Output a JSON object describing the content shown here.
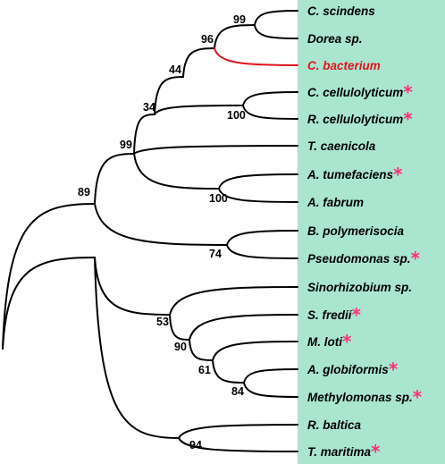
{
  "colors": {
    "panel": "#a9e5cf",
    "branch": "#000000",
    "highlight": "#e0141e",
    "star": "#ff2d7a"
  },
  "tree": {
    "taxa": [
      {
        "name": "C. scindens",
        "highlight": false,
        "star": false
      },
      {
        "name": "Dorea sp.",
        "highlight": false,
        "star": false
      },
      {
        "name": "C. bacterium",
        "highlight": true,
        "star": false
      },
      {
        "name": "C. cellulolyticum",
        "highlight": false,
        "star": true
      },
      {
        "name": "R. cellulolyticum",
        "highlight": false,
        "star": true
      },
      {
        "name": "T. caenicola",
        "highlight": false,
        "star": false
      },
      {
        "name": "A. tumefaciens",
        "highlight": false,
        "star": true
      },
      {
        "name": "A. fabrum",
        "highlight": false,
        "star": false
      },
      {
        "name": "B. polymerisocia",
        "highlight": false,
        "star": false
      },
      {
        "name": "Pseudomonas sp.",
        "highlight": false,
        "star": true
      },
      {
        "name": "Sinorhizobium sp.",
        "highlight": false,
        "star": false
      },
      {
        "name": "S. fredii",
        "highlight": false,
        "star": true
      },
      {
        "name": "M. loti",
        "highlight": false,
        "star": true
      },
      {
        "name": "A. globiformis",
        "highlight": false,
        "star": true
      },
      {
        "name": "Methylomonas sp.",
        "highlight": false,
        "star": true
      },
      {
        "name": "R. baltica",
        "highlight": false,
        "star": false
      },
      {
        "name": "T. maritima",
        "highlight": false,
        "star": true
      }
    ],
    "star_symbol": "*",
    "support_values": [
      "99",
      "96",
      "44",
      "100",
      "34",
      "99",
      "100",
      "89",
      "74",
      "53",
      "90",
      "61",
      "84",
      "94"
    ]
  }
}
